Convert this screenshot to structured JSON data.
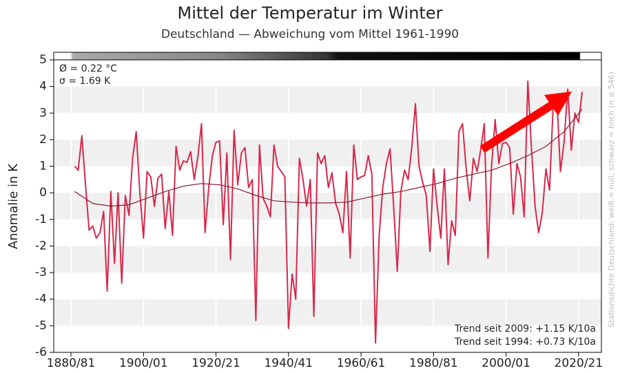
{
  "chart_data": {
    "type": "line",
    "title": "Mittel der Temperatur im Winter",
    "subtitle": "Deutschland — Abweichung vom Mittel 1961-1990",
    "y_label": "Anomalie in K",
    "side_note": "Stationsdichte Deutschland: weiß = null, schwarz = hoch (n ≤ 546)",
    "annotations": [
      "Ø = 0.22 °C",
      "σ = 1.69 K",
      "Trend seit 2009: +1.15 K/10a",
      "Trend seit 1994: +0.73 K/10a"
    ],
    "x": [
      1882,
      1883,
      1884,
      1885,
      1886,
      1887,
      1888,
      1889,
      1890,
      1891,
      1892,
      1893,
      1894,
      1895,
      1896,
      1897,
      1898,
      1899,
      1900,
      1901,
      1902,
      1903,
      1904,
      1905,
      1906,
      1907,
      1908,
      1909,
      1910,
      1911,
      1912,
      1913,
      1914,
      1915,
      1916,
      1917,
      1918,
      1919,
      1920,
      1921,
      1922,
      1923,
      1924,
      1925,
      1926,
      1927,
      1928,
      1929,
      1930,
      1931,
      1932,
      1933,
      1934,
      1935,
      1936,
      1937,
      1938,
      1939,
      1940,
      1941,
      1942,
      1943,
      1944,
      1945,
      1946,
      1947,
      1948,
      1949,
      1950,
      1951,
      1952,
      1953,
      1954,
      1955,
      1956,
      1957,
      1958,
      1959,
      1960,
      1961,
      1962,
      1963,
      1964,
      1965,
      1966,
      1967,
      1968,
      1969,
      1970,
      1971,
      1972,
      1973,
      1974,
      1975,
      1976,
      1977,
      1978,
      1979,
      1980,
      1981,
      1982,
      1983,
      1984,
      1985,
      1986,
      1987,
      1988,
      1989,
      1990,
      1991,
      1992,
      1993,
      1994,
      1995,
      1996,
      1997,
      1998,
      1999,
      2000,
      2001,
      2002,
      2003,
      2004,
      2005,
      2006,
      2007,
      2008,
      2009,
      2010,
      2011,
      2012,
      2013,
      2014,
      2015,
      2016,
      2017,
      2018,
      2019,
      2020,
      2021,
      2022
    ],
    "series": [
      {
        "color": "#d6284a",
        "values": [
          1.0,
          0.85,
          2.15,
          0.3,
          -1.4,
          -1.25,
          -1.7,
          -1.5,
          -0.7,
          -3.7,
          0.05,
          -2.65,
          0.0,
          -3.4,
          -0.1,
          -0.85,
          1.3,
          2.3,
          0.0,
          -1.7,
          0.8,
          0.6,
          -0.5,
          0.55,
          0.7,
          -1.35,
          0.05,
          -1.6,
          1.75,
          0.85,
          1.2,
          1.15,
          1.55,
          0.5,
          1.35,
          2.6,
          -1.5,
          0.2,
          1.4,
          1.9,
          1.95,
          -1.2,
          1.5,
          -2.5,
          2.35,
          0.3,
          1.5,
          1.7,
          0.2,
          0.5,
          -4.8,
          1.8,
          -0.2,
          -0.5,
          -0.9,
          1.8,
          1.0,
          0.8,
          0.6,
          -5.1,
          -3.05,
          -4.0,
          1.3,
          0.5,
          -0.5,
          0.5,
          -4.65,
          1.5,
          1.1,
          1.4,
          0.2,
          0.75,
          -0.4,
          -0.8,
          -1.5,
          0.8,
          -2.45,
          1.8,
          0.5,
          0.6,
          0.65,
          1.4,
          0.7,
          -5.65,
          -1.6,
          0.2,
          1.1,
          1.65,
          -0.5,
          -2.95,
          0.05,
          0.85,
          0.5,
          1.7,
          3.35,
          1.0,
          0.4,
          -0.1,
          -2.2,
          0.9,
          -0.5,
          -1.7,
          0.9,
          -2.7,
          -1.05,
          -1.6,
          2.3,
          2.6,
          0.9,
          -0.3,
          1.3,
          0.8,
          1.6,
          2.6,
          -2.45,
          1.0,
          2.75,
          1.1,
          1.85,
          1.9,
          1.7,
          -0.8,
          1.1,
          0.6,
          -0.9,
          4.2,
          1.7,
          -0.5,
          -1.5,
          -0.75,
          0.9,
          0.1,
          3.3,
          3.6,
          0.8,
          1.9,
          3.9,
          1.6,
          3.0,
          2.65,
          3.8
        ]
      },
      {
        "color": "#8b1a2b",
        "x": [
          1882,
          1887,
          1892,
          1897,
          1902,
          1907,
          1912,
          1917,
          1922,
          1927,
          1932,
          1937,
          1942,
          1947,
          1952,
          1957,
          1962,
          1967,
          1972,
          1977,
          1982,
          1987,
          1992,
          1997,
          2002,
          2007,
          2012,
          2017,
          2022
        ],
        "values": [
          0.05,
          -0.4,
          -0.5,
          -0.45,
          -0.2,
          0.05,
          0.25,
          0.35,
          0.3,
          0.15,
          -0.1,
          -0.3,
          -0.35,
          -0.38,
          -0.38,
          -0.35,
          -0.2,
          -0.05,
          0.05,
          0.2,
          0.35,
          0.55,
          0.7,
          0.85,
          1.1,
          1.4,
          1.75,
          2.3,
          3.15
        ]
      }
    ],
    "xlim": [
      1876.25,
      2027.3
    ],
    "xticks": [
      {
        "value": 1881,
        "label": "1880/81"
      },
      {
        "value": 1901,
        "label": "1900/01"
      },
      {
        "value": 1921,
        "label": "1920/21"
      },
      {
        "value": 1941,
        "label": "1940/41"
      },
      {
        "value": 1961,
        "label": "1960/61"
      },
      {
        "value": 1981,
        "label": "1980/81"
      },
      {
        "value": 2001,
        "label": "2000/01"
      },
      {
        "value": 2021,
        "label": "2020/21"
      }
    ],
    "ylim": [
      -6,
      5
    ],
    "yticks": [
      -6,
      -5,
      -4,
      -3,
      -2,
      -1,
      0,
      1,
      2,
      3,
      4,
      5
    ],
    "grid": true
  }
}
